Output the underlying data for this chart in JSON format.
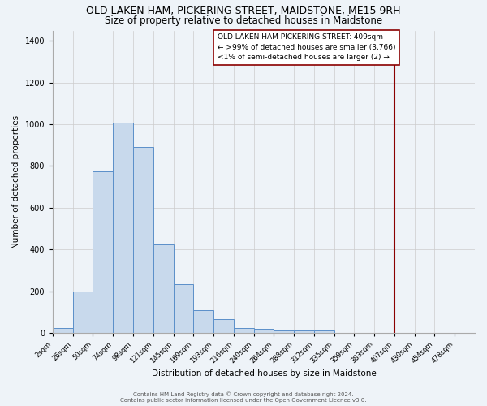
{
  "title": "OLD LAKEN HAM, PICKERING STREET, MAIDSTONE, ME15 9RH",
  "subtitle": "Size of property relative to detached houses in Maidstone",
  "xlabel": "Distribution of detached houses by size in Maidstone",
  "ylabel": "Number of detached properties",
  "bar_labels": [
    "2sqm",
    "26sqm",
    "50sqm",
    "74sqm",
    "98sqm",
    "121sqm",
    "145sqm",
    "169sqm",
    "193sqm",
    "216sqm",
    "240sqm",
    "264sqm",
    "288sqm",
    "312sqm",
    "335sqm",
    "359sqm",
    "383sqm",
    "407sqm",
    "430sqm",
    "454sqm",
    "478sqm"
  ],
  "bar_heights": [
    25,
    200,
    775,
    1010,
    890,
    425,
    235,
    110,
    65,
    25,
    20,
    10,
    10,
    10,
    0,
    0,
    0,
    0,
    0,
    0
  ],
  "bar_color": "#c8d9ec",
  "bar_edge_color": "#5b8fc9",
  "vline_color": "#8b0000",
  "vline_x": 17,
  "annotation_text": "OLD LAKEN HAM PICKERING STREET: 409sqm\n← >99% of detached houses are smaller (3,766)\n<1% of semi-detached houses are larger (2) →",
  "annotation_box_color": "#ffffff",
  "annotation_box_edge_color": "#8b0000",
  "ylim": [
    0,
    1450
  ],
  "yticks": [
    0,
    200,
    400,
    600,
    800,
    1000,
    1200,
    1400
  ],
  "grid_color": "#cccccc",
  "background_color": "#eef3f8",
  "footer_line1": "Contains HM Land Registry data © Crown copyright and database right 2024.",
  "footer_line2": "Contains public sector information licensed under the Open Government Licence v3.0.",
  "title_fontsize": 9,
  "subtitle_fontsize": 8.5,
  "axis_label_fontsize": 7.5,
  "tick_fontsize": 6,
  "footer_fontsize": 5,
  "annotation_fontsize": 6.5
}
